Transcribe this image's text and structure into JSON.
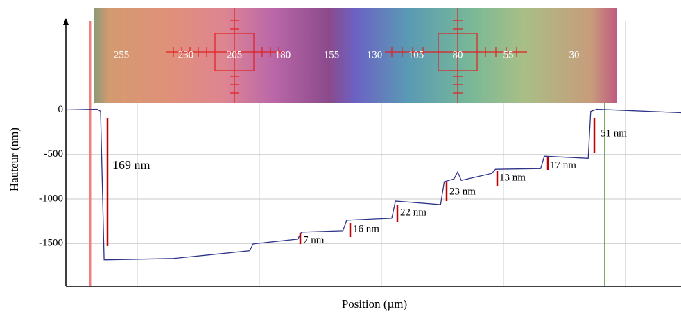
{
  "chart_data": {
    "type": "line",
    "x_label": "Position (µm)",
    "y_label": "Hauteur  (nm)",
    "xlim": [
      0,
      504
    ],
    "xgrid": [
      58.5,
      158.5,
      258.5,
      358.5,
      458.5
    ],
    "ylim": [
      -1980,
      1000
    ],
    "yticks": [
      -1500,
      -1000,
      -500,
      0
    ],
    "x": [
      0,
      25.6,
      28.4,
      31.3,
      34,
      88,
      116.5,
      150.6,
      153.4,
      190,
      193,
      227,
      230,
      267,
      270,
      307,
      310,
      318,
      321,
      324,
      349,
      352,
      389,
      392,
      428,
      430,
      435,
      504
    ],
    "series": [
      {
        "color": "#2e3488",
        "values": [
          0,
          8,
          -15,
          -1682,
          -1682,
          -1667,
          -1628,
          -1581,
          -1504,
          -1450,
          -1372,
          -1357,
          -1240,
          -1217,
          -1023,
          -1062,
          -806,
          -775,
          -698,
          -791,
          -713,
          -667,
          -659,
          -519,
          -543,
          -16,
          8,
          -31
        ]
      }
    ],
    "annotations": [
      "169 nm",
      "7 nm",
      "16 nm",
      "22 nm",
      "23 nm",
      "13 nm",
      "17 nm",
      "51 nm"
    ],
    "image_labels": [
      "255",
      "230",
      "205",
      "180",
      "155",
      "130",
      "105",
      "80",
      "55",
      "30"
    ]
  }
}
